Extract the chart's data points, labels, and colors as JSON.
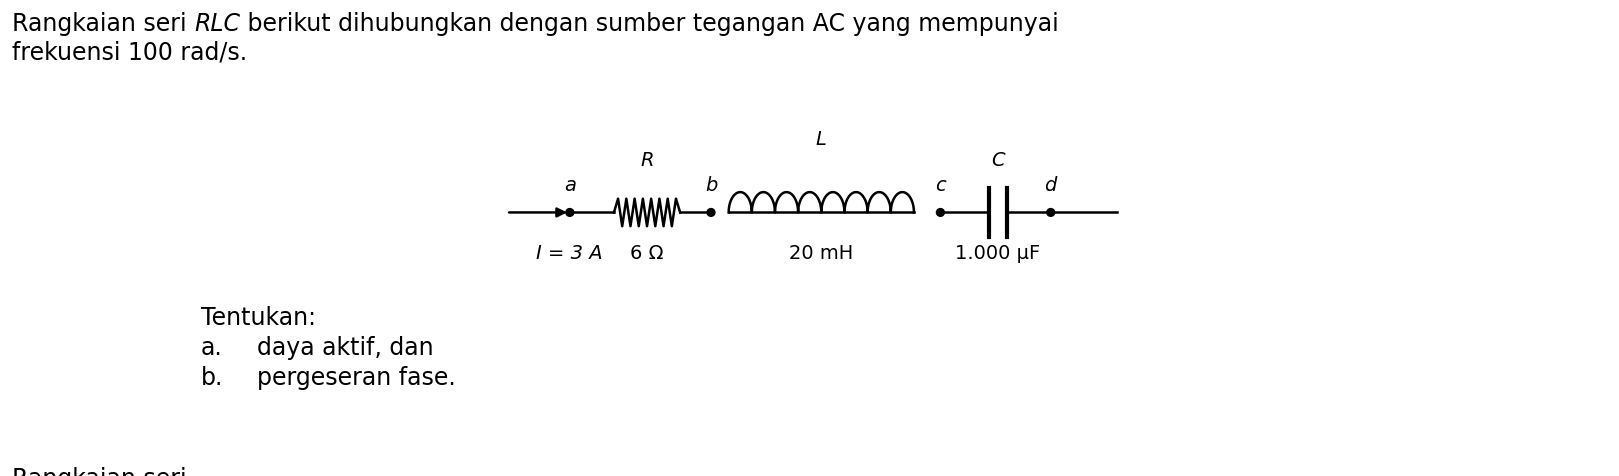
{
  "background_color": "#ffffff",
  "text_color": "#000000",
  "font_size_main": 17,
  "font_size_circuit": 14,
  "line1_normal1": "Rangkaian seri ",
  "line1_italic": "RLC",
  "line1_normal2": " berikut dihubungkan dengan sumber tegangan AC yang mempunyai",
  "line2": "frekuensi 100 rad/s.",
  "label_I": "I = 3 A",
  "label_R_sym": "R",
  "label_L_sym": "L",
  "label_C_sym": "C",
  "label_R_val": "6 Ω",
  "label_L_val": "20 mH",
  "label_C_val": "1.000 μF",
  "label_a": "a",
  "label_b": "b",
  "label_c": "c",
  "label_d": "d",
  "tentukan": "Tentukan:",
  "item_a_prefix": "a.",
  "item_a_text": "daya aktif, dan",
  "item_b_prefix": "b.",
  "item_b_text": "pergeseran fase."
}
